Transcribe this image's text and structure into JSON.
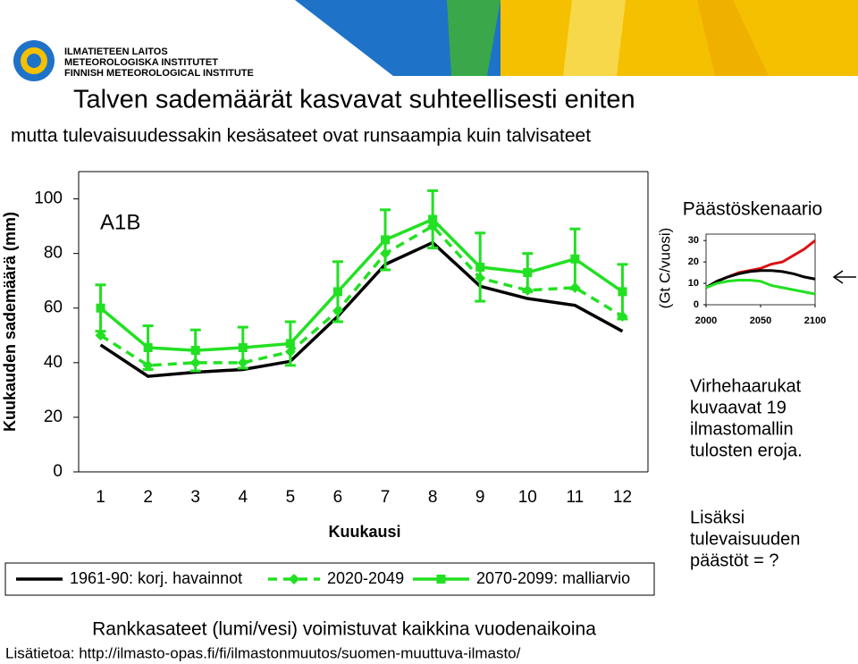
{
  "logo": {
    "lines": [
      "ILMATIETEEN LAITOS",
      "METEOROLOGISKA INSTITUTET",
      "FINNISH METEOROLOGICAL INSTITUTE"
    ]
  },
  "header": {
    "title": "Talven sademäärät kasvavat suhteellisesti eniten",
    "subtitle": "mutta tulevaisuudessakin kesäsateet ovat runsaampia kuin talvisateet"
  },
  "chart_data": [
    {
      "type": "line",
      "annotation": "A1B",
      "x_label": "Kuukausi",
      "y_label": "Kuukauden sademäärä (mm)",
      "categories": [
        "1",
        "2",
        "3",
        "4",
        "5",
        "6",
        "7",
        "8",
        "9",
        "10",
        "11",
        "12"
      ],
      "ylim": [
        0,
        110
      ],
      "yticks": [
        0,
        20,
        40,
        60,
        80,
        100
      ],
      "legend": "bottom",
      "series": [
        {
          "name": "1961-90: korj. havainnot",
          "color": "#000000",
          "dash": false,
          "marker": "none",
          "values": [
            46.5,
            35,
            36.5,
            37.5,
            40.5,
            57,
            76,
            84,
            68,
            63.5,
            61,
            51.5
          ]
        },
        {
          "name": "2020-2049",
          "color": "#22e022",
          "dash": true,
          "marker": "diamond",
          "values": [
            50,
            39,
            40,
            40,
            44,
            59,
            80,
            90,
            71,
            66.5,
            67.5,
            57
          ]
        },
        {
          "name": "2070-2099: malliarvio",
          "color": "#22e022",
          "dash": false,
          "marker": "square",
          "values": [
            60,
            45.5,
            44.5,
            45.5,
            47,
            66,
            85,
            92.5,
            75,
            73,
            78,
            66
          ],
          "errors": [
            8.5,
            8,
            7.5,
            7.5,
            8,
            11,
            11,
            10.5,
            12.5,
            7,
            11,
            10
          ]
        }
      ]
    },
    {
      "type": "line",
      "title": "Päästöskenaario",
      "y_label": "(Gt C/vuosi)",
      "x": [
        2000,
        2010,
        2020,
        2030,
        2040,
        2050,
        2060,
        2070,
        2080,
        2090,
        2100
      ],
      "xlim": [
        2000,
        2100
      ],
      "xticks": [
        2000,
        2050,
        2100
      ],
      "ylim": [
        0,
        33
      ],
      "yticks": [
        0,
        10,
        20,
        30
      ],
      "series": [
        {
          "color": "#dd1111",
          "values": [
            8,
            11,
            13,
            15,
            16,
            17,
            19,
            20,
            23,
            26,
            30
          ]
        },
        {
          "color": "#000000",
          "values": [
            8,
            11,
            13,
            14.5,
            15.5,
            16,
            16,
            15.5,
            14.5,
            13,
            12
          ]
        },
        {
          "color": "#22e022",
          "values": [
            8,
            10,
            11,
            11.5,
            11.5,
            11,
            9,
            8,
            7,
            6,
            5
          ]
        }
      ]
    }
  ],
  "notes": {
    "errors": [
      "Virhehaarukat",
      "kuvaavat 19",
      "ilmastomallin",
      "tulosten eroja."
    ],
    "emissions": [
      "Lisäksi",
      "tulevaisuuden",
      "päästöt = ?"
    ]
  },
  "footer": {
    "headline": "Rankkasateet (lumi/vesi) voimistuvat kaikkina vuodenaikoina",
    "link": "Lisätietoa: http://ilmasto-opas.fi/fi/ilmastonmuutos/suomen-muuttuva-ilmasto/"
  }
}
